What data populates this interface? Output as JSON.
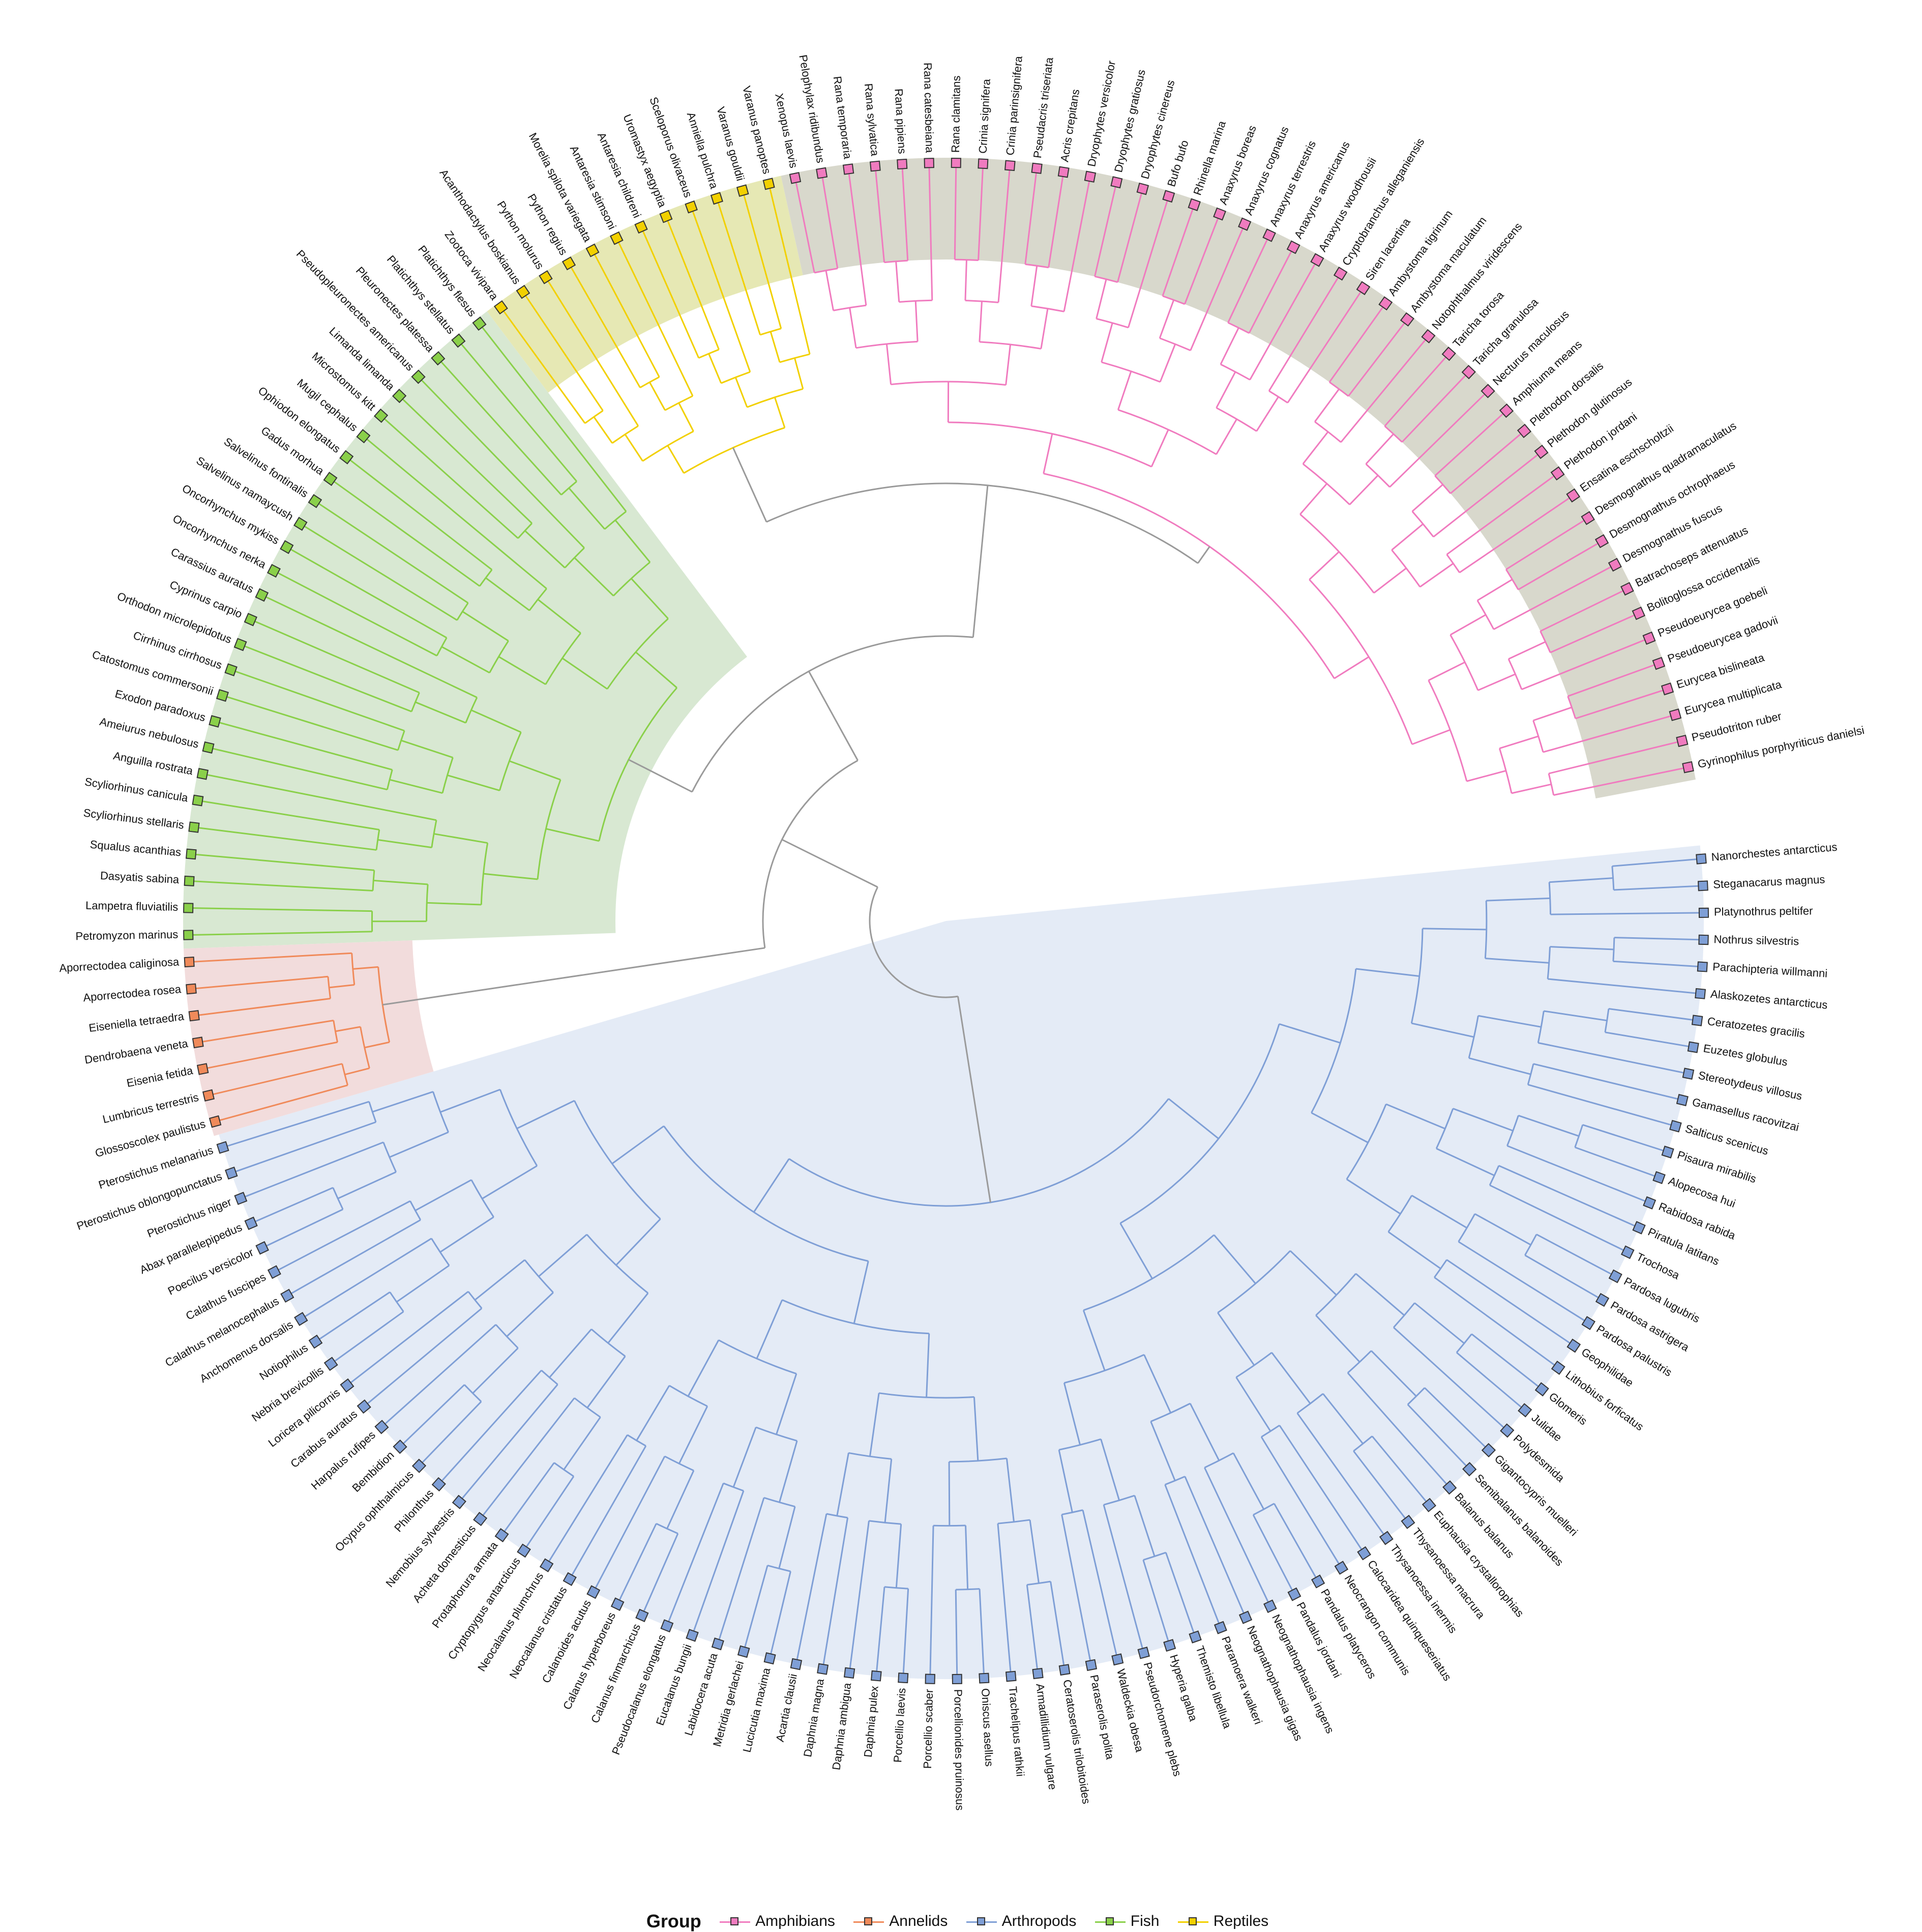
{
  "legend": {
    "title": "Group",
    "items": [
      {
        "label": "Amphibians",
        "color": "#f07bbf"
      },
      {
        "label": "Annelids",
        "color": "#f08a5a"
      },
      {
        "label": "Arthropods",
        "color": "#7f9fd6"
      },
      {
        "label": "Fish",
        "color": "#8ad04a"
      },
      {
        "label": "Reptiles",
        "color": "#f2d000"
      }
    ]
  },
  "groups": {
    "Arthropods": {
      "color": "#7f9fd6",
      "fill": "#e4ebf6"
    },
    "Annelids": {
      "color": "#f08a5a",
      "fill": "#f2dcdc"
    },
    "Fish": {
      "color": "#8ad04a",
      "fill": "#d8e8d2"
    },
    "Reptiles": {
      "color": "#f2d000",
      "fill": "#e6e8b4"
    },
    "Amphibians": {
      "color": "#f07bbf",
      "fill": "#d8d8cc"
    }
  },
  "tree": {
    "branch_neutral_color": "#9a9a9a",
    "tips": [
      {
        "label": "Nanorchestes antarcticus",
        "group": "Arthropods"
      },
      {
        "label": "Steganacarus magnus",
        "group": "Arthropods"
      },
      {
        "label": "Platynothrus peltifer",
        "group": "Arthropods"
      },
      {
        "label": "Nothrus silvestris",
        "group": "Arthropods"
      },
      {
        "label": "Parachipteria willmanni",
        "group": "Arthropods"
      },
      {
        "label": "Alaskozetes antarcticus",
        "group": "Arthropods"
      },
      {
        "label": "Ceratozetes gracilis",
        "group": "Arthropods"
      },
      {
        "label": "Euzetes globulus",
        "group": "Arthropods"
      },
      {
        "label": "Stereotydeus villosus",
        "group": "Arthropods"
      },
      {
        "label": "Gamasellus racovitzai",
        "group": "Arthropods"
      },
      {
        "label": "Salticus scenicus",
        "group": "Arthropods"
      },
      {
        "label": "Pisaura mirabilis",
        "group": "Arthropods"
      },
      {
        "label": "Alopecosa hui",
        "group": "Arthropods"
      },
      {
        "label": "Rabidosa rabida",
        "group": "Arthropods"
      },
      {
        "label": "Piratula latitans",
        "group": "Arthropods"
      },
      {
        "label": "Trochosa",
        "group": "Arthropods"
      },
      {
        "label": "Pardosa lugubris",
        "group": "Arthropods"
      },
      {
        "label": "Pardosa astrigera",
        "group": "Arthropods"
      },
      {
        "label": "Pardosa palustris",
        "group": "Arthropods"
      },
      {
        "label": "Geophilidae",
        "group": "Arthropods"
      },
      {
        "label": "Lithobius forficatus",
        "group": "Arthropods"
      },
      {
        "label": "Glomeris",
        "group": "Arthropods"
      },
      {
        "label": "Julidae",
        "group": "Arthropods"
      },
      {
        "label": "Polydesmida",
        "group": "Arthropods"
      },
      {
        "label": "Gigantocypris muelleri",
        "group": "Arthropods"
      },
      {
        "label": "Semibalanus balanoides",
        "group": "Arthropods"
      },
      {
        "label": "Balanus balanus",
        "group": "Arthropods"
      },
      {
        "label": "Euphausia crystallorophias",
        "group": "Arthropods"
      },
      {
        "label": "Thysanoessa macrura",
        "group": "Arthropods"
      },
      {
        "label": "Thysanoessa inermis",
        "group": "Arthropods"
      },
      {
        "label": "Calocaridea quinqueseriatus",
        "group": "Arthropods"
      },
      {
        "label": "Neocrangon communis",
        "group": "Arthropods"
      },
      {
        "label": "Pandalus platyceros",
        "group": "Arthropods"
      },
      {
        "label": "Pandalus jordani",
        "group": "Arthropods"
      },
      {
        "label": "Neognathophausia ingens",
        "group": "Arthropods"
      },
      {
        "label": "Neognathophausia gigas",
        "group": "Arthropods"
      },
      {
        "label": "Paramoera walkeri",
        "group": "Arthropods"
      },
      {
        "label": "Themisto libellula",
        "group": "Arthropods"
      },
      {
        "label": "Hyperia galba",
        "group": "Arthropods"
      },
      {
        "label": "Pseudorchomene plebs",
        "group": "Arthropods"
      },
      {
        "label": "Waldeckia obesa",
        "group": "Arthropods"
      },
      {
        "label": "Paraserolis polita",
        "group": "Arthropods"
      },
      {
        "label": "Ceratoserolis trilobitoides",
        "group": "Arthropods"
      },
      {
        "label": "Armadillidium vulgare",
        "group": "Arthropods"
      },
      {
        "label": "Trachelipus rathkii",
        "group": "Arthropods"
      },
      {
        "label": "Oniscus asellus",
        "group": "Arthropods"
      },
      {
        "label": "Porcellionides pruinosus",
        "group": "Arthropods"
      },
      {
        "label": "Porcellio scaber",
        "group": "Arthropods"
      },
      {
        "label": "Porcellio laevis",
        "group": "Arthropods"
      },
      {
        "label": "Daphnia pulex",
        "group": "Arthropods"
      },
      {
        "label": "Daphnia ambigua",
        "group": "Arthropods"
      },
      {
        "label": "Daphnia magna",
        "group": "Arthropods"
      },
      {
        "label": "Acartia clausii",
        "group": "Arthropods"
      },
      {
        "label": "Lucicutia maxima",
        "group": "Arthropods"
      },
      {
        "label": "Metridia gerlachei",
        "group": "Arthropods"
      },
      {
        "label": "Labidocera acuta",
        "group": "Arthropods"
      },
      {
        "label": "Eucalanus bungii",
        "group": "Arthropods"
      },
      {
        "label": "Pseudocalanus elongatus",
        "group": "Arthropods"
      },
      {
        "label": "Calanus finmarchicus",
        "group": "Arthropods"
      },
      {
        "label": "Calanus hyperboreus",
        "group": "Arthropods"
      },
      {
        "label": "Calanoides acutus",
        "group": "Arthropods"
      },
      {
        "label": "Neocalanus cristatus",
        "group": "Arthropods"
      },
      {
        "label": "Neocalanus plumchrus",
        "group": "Arthropods"
      },
      {
        "label": "Cryptopygus antarcticus",
        "group": "Arthropods"
      },
      {
        "label": "Protaphorura armata",
        "group": "Arthropods"
      },
      {
        "label": "Acheta domesticus",
        "group": "Arthropods"
      },
      {
        "label": "Nemobius sylvestris",
        "group": "Arthropods"
      },
      {
        "label": "Philonthus",
        "group": "Arthropods"
      },
      {
        "label": "Ocypus ophthalmicus",
        "group": "Arthropods"
      },
      {
        "label": "Bembidion",
        "group": "Arthropods"
      },
      {
        "label": "Harpalus rufipes",
        "group": "Arthropods"
      },
      {
        "label": "Carabus auratus",
        "group": "Arthropods"
      },
      {
        "label": "Loricera pilicornis",
        "group": "Arthropods"
      },
      {
        "label": "Nebria brevicollis",
        "group": "Arthropods"
      },
      {
        "label": "Notiophilus",
        "group": "Arthropods"
      },
      {
        "label": "Anchomenus dorsalis",
        "group": "Arthropods"
      },
      {
        "label": "Calathus melanocephalus",
        "group": "Arthropods"
      },
      {
        "label": "Calathus fuscipes",
        "group": "Arthropods"
      },
      {
        "label": "Poecilus versicolor",
        "group": "Arthropods"
      },
      {
        "label": "Abax parallelepipedus",
        "group": "Arthropods"
      },
      {
        "label": "Pterostichus niger",
        "group": "Arthropods"
      },
      {
        "label": "Pterostichus oblongopunctatus",
        "group": "Arthropods"
      },
      {
        "label": "Pterostichus melanarius",
        "group": "Arthropods"
      },
      {
        "label": "Glossoscolex paulistus",
        "group": "Annelids"
      },
      {
        "label": "Lumbricus terrestris",
        "group": "Annelids"
      },
      {
        "label": "Eisenia fetida",
        "group": "Annelids"
      },
      {
        "label": "Dendrobaena veneta",
        "group": "Annelids"
      },
      {
        "label": "Eiseniella tetraedra",
        "group": "Annelids"
      },
      {
        "label": "Aporrectodea rosea",
        "group": "Annelids"
      },
      {
        "label": "Aporrectodea caliginosa",
        "group": "Annelids"
      },
      {
        "label": "Petromyzon marinus",
        "group": "Fish"
      },
      {
        "label": "Lampetra fluviatilis",
        "group": "Fish"
      },
      {
        "label": "Dasyatis sabina",
        "group": "Fish"
      },
      {
        "label": "Squalus acanthias",
        "group": "Fish"
      },
      {
        "label": "Scyliorhinus stellaris",
        "group": "Fish"
      },
      {
        "label": "Scyliorhinus canicula",
        "group": "Fish"
      },
      {
        "label": "Anguilla rostrata",
        "group": "Fish"
      },
      {
        "label": "Ameiurus nebulosus",
        "group": "Fish"
      },
      {
        "label": "Exodon paradoxus",
        "group": "Fish"
      },
      {
        "label": "Catostomus commersonii",
        "group": "Fish"
      },
      {
        "label": "Cirrhinus cirrhosus",
        "group": "Fish"
      },
      {
        "label": "Orthodon microlepidotus",
        "group": "Fish"
      },
      {
        "label": "Cyprinus carpio",
        "group": "Fish"
      },
      {
        "label": "Carassius auratus",
        "group": "Fish"
      },
      {
        "label": "Oncorhynchus nerka",
        "group": "Fish"
      },
      {
        "label": "Oncorhynchus mykiss",
        "group": "Fish"
      },
      {
        "label": "Salvelinus namaycush",
        "group": "Fish"
      },
      {
        "label": "Salvelinus fontinalis",
        "group": "Fish"
      },
      {
        "label": "Gadus morhua",
        "group": "Fish"
      },
      {
        "label": "Ophiodon elongatus",
        "group": "Fish"
      },
      {
        "label": "Mugil cephalus",
        "group": "Fish"
      },
      {
        "label": "Microstomus kitt",
        "group": "Fish"
      },
      {
        "label": "Limanda limanda",
        "group": "Fish"
      },
      {
        "label": "Pseudopleuronectes americanus",
        "group": "Fish"
      },
      {
        "label": "Pleuronectes platessa",
        "group": "Fish"
      },
      {
        "label": "Platichthys stellatus",
        "group": "Fish"
      },
      {
        "label": "Platichthys flesus",
        "group": "Fish"
      },
      {
        "label": "Zootoca vivipara",
        "group": "Reptiles"
      },
      {
        "label": "Acanthodactylus boskianus",
        "group": "Reptiles"
      },
      {
        "label": "Python molurus",
        "group": "Reptiles"
      },
      {
        "label": "Python regius",
        "group": "Reptiles"
      },
      {
        "label": "Morelia spilota variegata",
        "group": "Reptiles"
      },
      {
        "label": "Antaresia stimsoni",
        "group": "Reptiles"
      },
      {
        "label": "Antaresia childreni",
        "group": "Reptiles"
      },
      {
        "label": "Uromastyx aegyptia",
        "group": "Reptiles"
      },
      {
        "label": "Sceloporus olivaceus",
        "group": "Reptiles"
      },
      {
        "label": "Anniella pulchra",
        "group": "Reptiles"
      },
      {
        "label": "Varanus gouldii",
        "group": "Reptiles"
      },
      {
        "label": "Varanus panoptes",
        "group": "Reptiles"
      },
      {
        "label": "Xenopus laevis",
        "group": "Amphibians"
      },
      {
        "label": "Pelophylax ridibundus",
        "group": "Amphibians"
      },
      {
        "label": "Rana temporaria",
        "group": "Amphibians"
      },
      {
        "label": "Rana sylvatica",
        "group": "Amphibians"
      },
      {
        "label": "Rana pipiens",
        "group": "Amphibians"
      },
      {
        "label": "Rana catesbeiana",
        "group": "Amphibians"
      },
      {
        "label": "Rana clamitans",
        "group": "Amphibians"
      },
      {
        "label": "Crinia signifera",
        "group": "Amphibians"
      },
      {
        "label": "Crinia parinsignifera",
        "group": "Amphibians"
      },
      {
        "label": "Pseudacris triseriata",
        "group": "Amphibians"
      },
      {
        "label": "Acris crepitans",
        "group": "Amphibians"
      },
      {
        "label": "Dryophytes versicolor",
        "group": "Amphibians"
      },
      {
        "label": "Dryophytes gratiosus",
        "group": "Amphibians"
      },
      {
        "label": "Dryophytes cinereus",
        "group": "Amphibians"
      },
      {
        "label": "Bufo bufo",
        "group": "Amphibians"
      },
      {
        "label": "Rhinella marina",
        "group": "Amphibians"
      },
      {
        "label": "Anaxyrus boreas",
        "group": "Amphibians"
      },
      {
        "label": "Anaxyrus cognatus",
        "group": "Amphibians"
      },
      {
        "label": "Anaxyrus terrestris",
        "group": "Amphibians"
      },
      {
        "label": "Anaxyrus americanus",
        "group": "Amphibians"
      },
      {
        "label": "Anaxyrus woodhousii",
        "group": "Amphibians"
      },
      {
        "label": "Cryptobranchus alleganiensis",
        "group": "Amphibians"
      },
      {
        "label": "Siren lacertina",
        "group": "Amphibians"
      },
      {
        "label": "Ambystoma tigrinum",
        "group": "Amphibians"
      },
      {
        "label": "Ambystoma maculatum",
        "group": "Amphibians"
      },
      {
        "label": "Notophthalmus viridescens",
        "group": "Amphibians"
      },
      {
        "label": "Taricha torosa",
        "group": "Amphibians"
      },
      {
        "label": "Taricha granulosa",
        "group": "Amphibians"
      },
      {
        "label": "Necturus maculosus",
        "group": "Amphibians"
      },
      {
        "label": "Amphiuma means",
        "group": "Amphibians"
      },
      {
        "label": "Plethodon dorsalis",
        "group": "Amphibians"
      },
      {
        "label": "Plethodon glutinosus",
        "group": "Amphibians"
      },
      {
        "label": "Plethodon jordani",
        "group": "Amphibians"
      },
      {
        "label": "Ensatina eschscholtzii",
        "group": "Amphibians"
      },
      {
        "label": "Desmognathus quadramaculatus",
        "group": "Amphibians"
      },
      {
        "label": "Desmognathus ochrophaeus",
        "group": "Amphibians"
      },
      {
        "label": "Desmognathus fuscus",
        "group": "Amphibians"
      },
      {
        "label": "Batrachoseps attenuatus",
        "group": "Amphibians"
      },
      {
        "label": "Bolitoglossa occidentalis",
        "group": "Amphibians"
      },
      {
        "label": "Pseudoeurycea goebeli",
        "group": "Amphibians"
      },
      {
        "label": "Pseudoeurycea gadovii",
        "group": "Amphibians"
      },
      {
        "label": "Eurycea bislineata",
        "group": "Amphibians"
      },
      {
        "label": "Eurycea multiplicata",
        "group": "Amphibians"
      },
      {
        "label": "Pseudotriton ruber",
        "group": "Amphibians"
      },
      {
        "label": "Gyrinophilus porphyriticus danielsi",
        "group": "Amphibians"
      }
    ]
  }
}
